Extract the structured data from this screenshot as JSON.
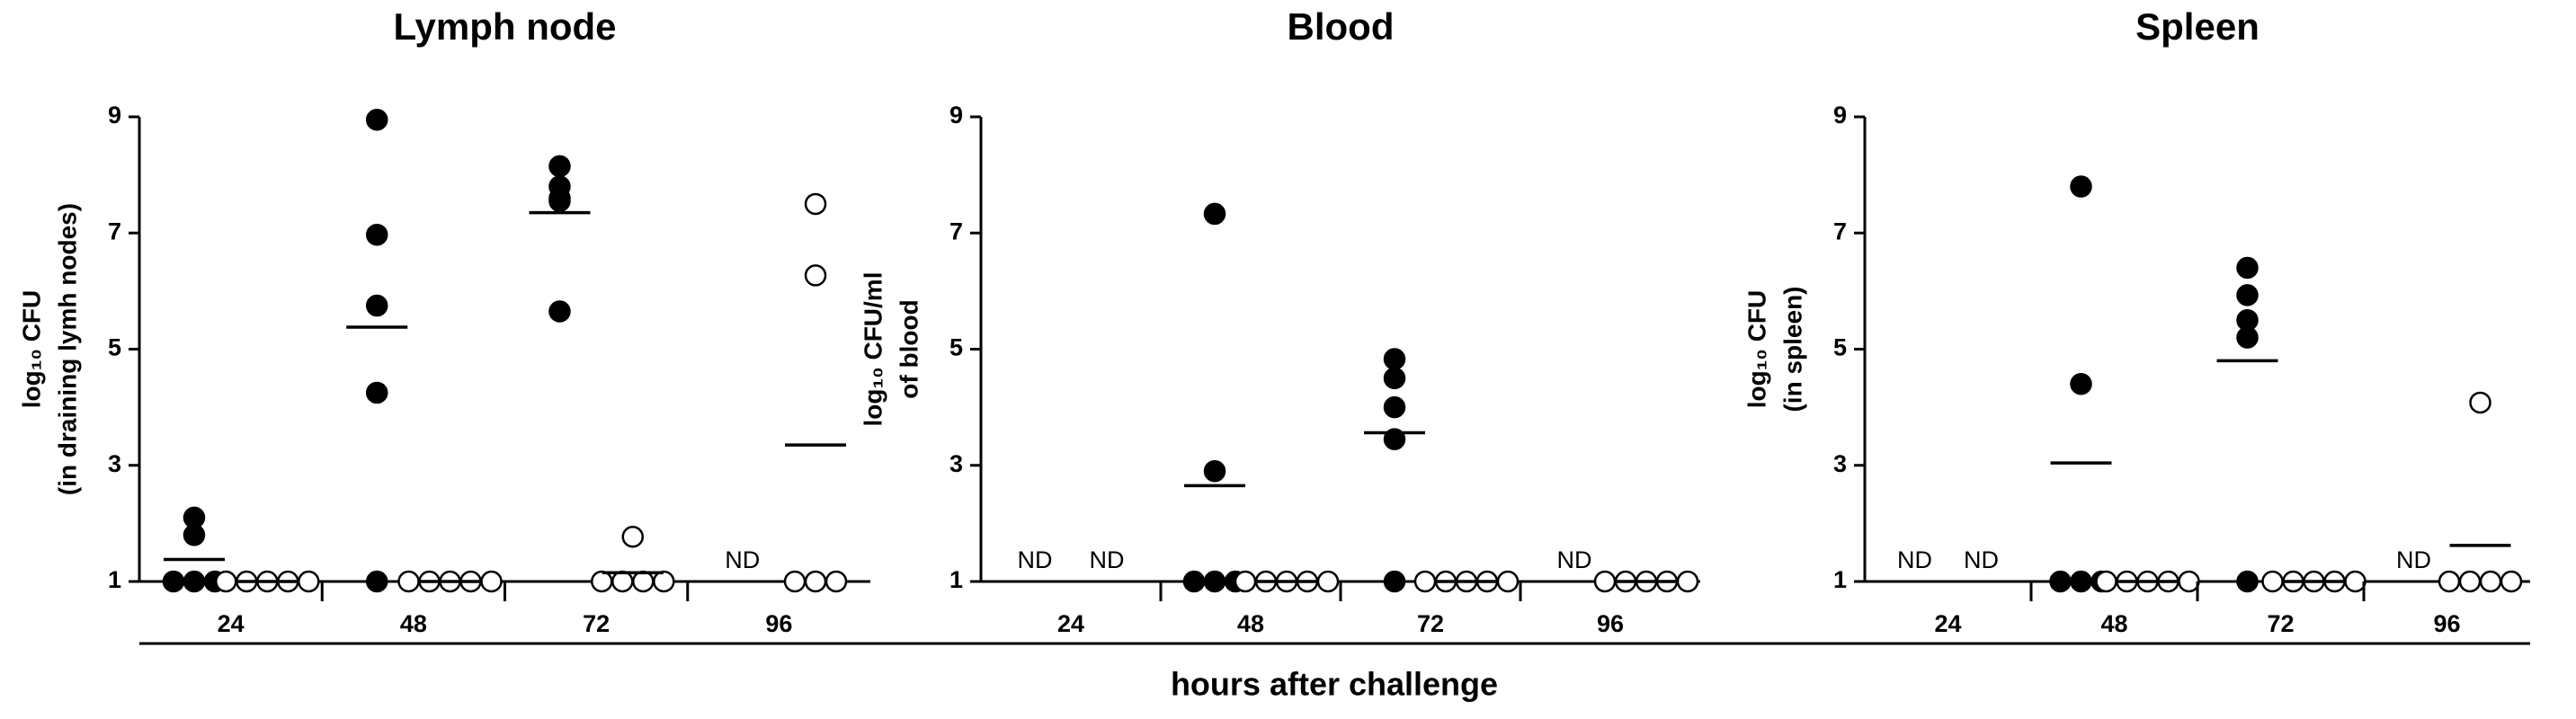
{
  "chart_data": [
    {
      "type": "dotplot",
      "title": "Lymph node",
      "ylabel": [
        "log₁₀ CFU",
        "(in draining lymh nodes)"
      ],
      "categories": [
        "24",
        "48",
        "72",
        "96"
      ],
      "ylim": [
        1,
        9
      ],
      "yticks": [
        1,
        3,
        5,
        7,
        9
      ],
      "series": [
        {
          "marker": "filled",
          "color": "#000000",
          "values": [
            [
              2.1,
              1.8,
              1,
              1,
              1
            ],
            [
              8.95,
              6.97,
              5.75,
              4.25,
              1
            ],
            [
              8.15,
              7.8,
              7.6,
              7.55,
              5.65
            ],
            null
          ],
          "means": [
            1.38,
            5.38,
            7.35,
            null
          ]
        },
        {
          "marker": "open",
          "color": "#000000",
          "values": [
            [
              1,
              1,
              1,
              1,
              1
            ],
            [
              1,
              1,
              1,
              1,
              1
            ],
            [
              1.77,
              1,
              1,
              1,
              1
            ],
            [
              7.5,
              6.27,
              1,
              1,
              1
            ]
          ],
          "means": [
            1,
            1,
            1.15,
            3.35
          ]
        }
      ]
    },
    {
      "type": "dotplot",
      "title": "Blood",
      "ylabel": [
        "log₁₀ CFU/ml",
        "of blood"
      ],
      "categories": [
        "24",
        "48",
        "72",
        "96"
      ],
      "ylim": [
        1,
        9
      ],
      "yticks": [
        1,
        3,
        5,
        7,
        9
      ],
      "series": [
        {
          "marker": "filled",
          "color": "#000000",
          "values": [
            null,
            [
              7.33,
              2.9,
              1,
              1,
              1
            ],
            [
              4.83,
              4.5,
              4.0,
              3.45,
              1
            ],
            null
          ],
          "means": [
            null,
            2.65,
            3.56,
            null
          ]
        },
        {
          "marker": "open",
          "color": "#000000",
          "values": [
            null,
            [
              1,
              1,
              1,
              1,
              1
            ],
            [
              1,
              1,
              1,
              1,
              1
            ],
            [
              1,
              1,
              1,
              1,
              1
            ]
          ],
          "means": [
            null,
            1,
            1,
            1
          ]
        }
      ]
    },
    {
      "type": "dotplot",
      "title": "Spleen",
      "ylabel": [
        "log₁₀ CFU",
        "(in spleen)"
      ],
      "categories": [
        "24",
        "48",
        "72",
        "96"
      ],
      "ylim": [
        1,
        9
      ],
      "yticks": [
        1,
        3,
        5,
        7,
        9
      ],
      "series": [
        {
          "marker": "filled",
          "color": "#000000",
          "values": [
            null,
            [
              7.8,
              4.4,
              1,
              1,
              1
            ],
            [
              6.4,
              5.93,
              5.5,
              5.2,
              1
            ],
            null
          ],
          "means": [
            null,
            3.04,
            4.8,
            null
          ]
        },
        {
          "marker": "open",
          "color": "#000000",
          "values": [
            null,
            [
              1,
              1,
              1,
              1,
              1
            ],
            [
              1,
              1,
              1,
              1,
              1
            ],
            [
              4.08,
              1,
              1,
              1,
              1
            ]
          ],
          "means": [
            null,
            1,
            1,
            1.62
          ]
        }
      ]
    }
  ],
  "nd_label": "ND",
  "xlabel": "hours after challenge"
}
